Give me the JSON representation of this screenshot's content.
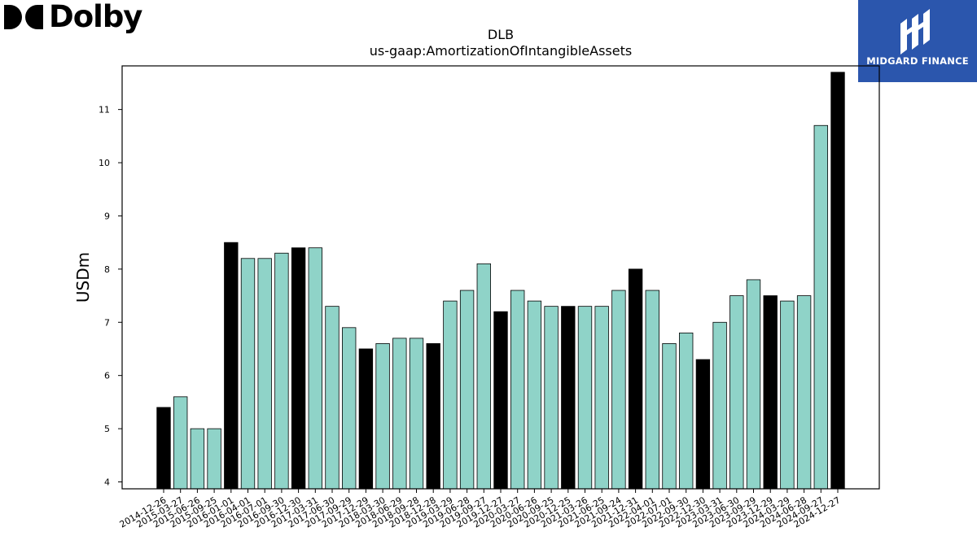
{
  "logos": {
    "dolby_text": "Dolby",
    "midgard_text": "MIDGARD FINANCE"
  },
  "colors": {
    "teal": "#8fd3c8",
    "black": "#000000",
    "midgard_blue": "#2b56ad"
  },
  "chart_data": {
    "type": "bar",
    "title": "DLB",
    "subtitle": "us-gaap:AmortizationOfIntangibleAssets",
    "xlabel": "",
    "ylabel": "USDm",
    "ylim": [
      3.87,
      11.82
    ],
    "yticks": [
      4,
      5,
      6,
      7,
      8,
      9,
      10,
      11
    ],
    "grid": false,
    "categories": [
      "2014-12-26",
      "2015-03-27",
      "2015-06-26",
      "2015-09-25",
      "2016-01-01",
      "2016-04-01",
      "2016-07-01",
      "2016-09-30",
      "2016-12-30",
      "2017-03-31",
      "2017-06-30",
      "2017-09-29",
      "2017-12-29",
      "2018-03-30",
      "2018-06-29",
      "2018-09-28",
      "2018-12-28",
      "2019-03-29",
      "2019-06-28",
      "2019-09-27",
      "2019-12-27",
      "2020-03-27",
      "2020-06-26",
      "2020-09-25",
      "2020-12-25",
      "2021-03-26",
      "2021-06-25",
      "2021-09-24",
      "2021-12-31",
      "2022-04-01",
      "2022-07-01",
      "2022-09-30",
      "2022-12-30",
      "2023-03-31",
      "2023-06-30",
      "2023-09-29",
      "2023-12-29",
      "2024-03-29",
      "2024-06-28",
      "2024-09-27",
      "2024-12-27"
    ],
    "values": [
      5.4,
      5.6,
      5.0,
      5.0,
      8.5,
      8.2,
      8.2,
      8.3,
      8.4,
      8.4,
      7.3,
      6.9,
      6.5,
      6.6,
      6.7,
      6.7,
      6.6,
      7.4,
      7.6,
      8.1,
      7.2,
      7.6,
      7.4,
      7.3,
      7.3,
      7.3,
      7.3,
      7.6,
      8.0,
      7.6,
      6.6,
      6.8,
      6.3,
      7.0,
      7.5,
      7.8,
      7.5,
      7.4,
      7.5,
      10.7,
      11.7
    ],
    "bar_colors": [
      "#000000",
      "#8fd3c8",
      "#8fd3c8",
      "#8fd3c8",
      "#000000",
      "#8fd3c8",
      "#8fd3c8",
      "#8fd3c8",
      "#000000",
      "#8fd3c8",
      "#8fd3c8",
      "#8fd3c8",
      "#000000",
      "#8fd3c8",
      "#8fd3c8",
      "#8fd3c8",
      "#000000",
      "#8fd3c8",
      "#8fd3c8",
      "#8fd3c8",
      "#000000",
      "#8fd3c8",
      "#8fd3c8",
      "#8fd3c8",
      "#000000",
      "#8fd3c8",
      "#8fd3c8",
      "#8fd3c8",
      "#000000",
      "#8fd3c8",
      "#8fd3c8",
      "#8fd3c8",
      "#000000",
      "#8fd3c8",
      "#8fd3c8",
      "#8fd3c8",
      "#000000",
      "#8fd3c8",
      "#8fd3c8",
      "#8fd3c8",
      "#000000"
    ]
  }
}
